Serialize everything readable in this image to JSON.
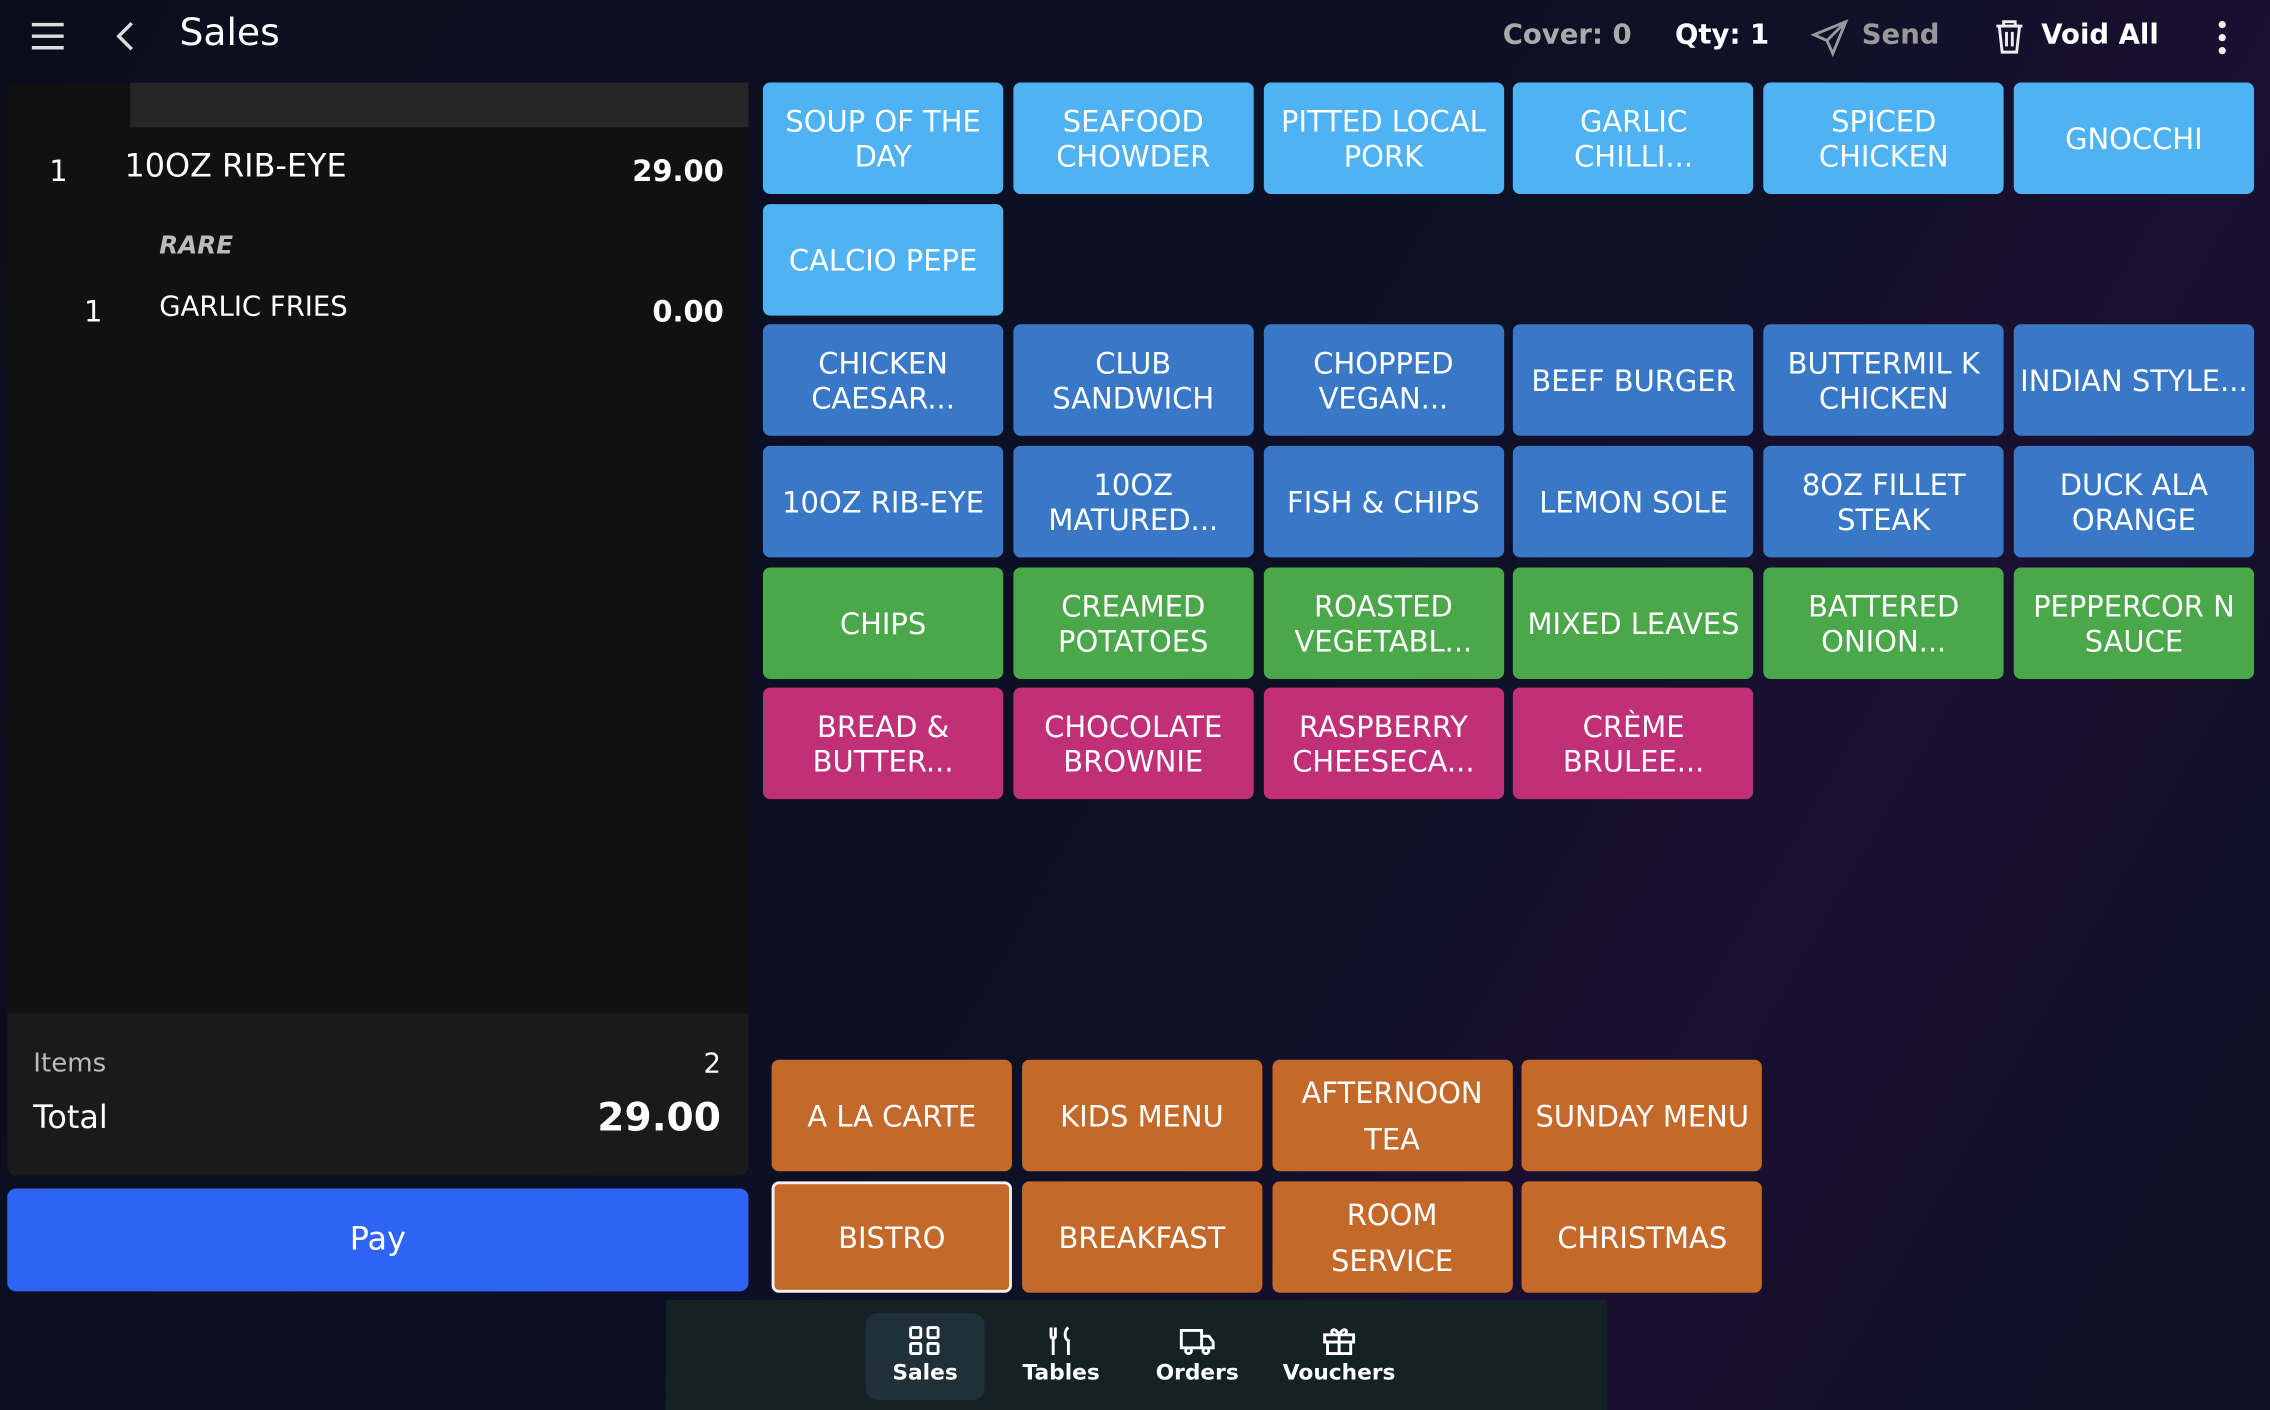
{
  "header": {
    "title": "Sales",
    "cover": "Cover: 0",
    "qty": "Qty: 1",
    "send": "Send",
    "void_all": "Void All"
  },
  "order": {
    "lines": [
      {
        "qty": "1",
        "name": "10OZ RIB-EYE",
        "price": "29.00",
        "modifier": "RARE"
      },
      {
        "qty": "1",
        "name": "GARLIC FRIES",
        "price": "0.00"
      }
    ],
    "items_label": "Items",
    "items_count": "2",
    "total_label": "Total",
    "total": "29.00"
  },
  "pay": "Pay",
  "menu_rows": [
    {
      "color": "#4fb2f3",
      "items": [
        "SOUP OF THE DAY",
        "SEAFOOD CHOWDER",
        "PITTED LOCAL PORK",
        "GARLIC CHILLI...",
        "SPICED CHICKEN",
        "GNOCCHI"
      ]
    },
    {
      "color": "#4fb2f3",
      "items": [
        "CALCIO PEPE"
      ]
    },
    {
      "color": "#3878c6",
      "items": [
        "CHICKEN CAESAR...",
        "CLUB SANDWICH",
        "CHOPPED VEGAN...",
        "BEEF BURGER",
        "BUTTERMIL K CHICKEN",
        "INDIAN STYLE..."
      ]
    },
    {
      "color": "#3878c6",
      "items": [
        "10OZ RIB-EYE",
        "10OZ MATURED...",
        "FISH & CHIPS",
        "LEMON SOLE",
        "8OZ FILLET STEAK",
        "DUCK ALA ORANGE"
      ]
    },
    {
      "color": "#4aa84a",
      "items": [
        "CHIPS",
        "CREAMED POTATOES",
        "ROASTED VEGETABL...",
        "MIXED LEAVES",
        "BATTERED ONION...",
        "PEPPERCOR N SAUCE"
      ]
    },
    {
      "color": "#c22f79",
      "items": [
        "BREAD & BUTTER...",
        "CHOCOLATE BROWNIE",
        "RASPBERRY CHEESECA...",
        "CRÈME BRULEE..."
      ]
    }
  ],
  "menus": [
    [
      "A LA CARTE",
      "KIDS MENU",
      "AFTERNOON TEA",
      "SUNDAY MENU"
    ],
    [
      "BISTRO",
      "BREAKFAST",
      "ROOM SERVICE",
      "CHRISTMAS"
    ]
  ],
  "nav": [
    "Sales",
    "Tables",
    "Orders",
    "Vouchers"
  ]
}
